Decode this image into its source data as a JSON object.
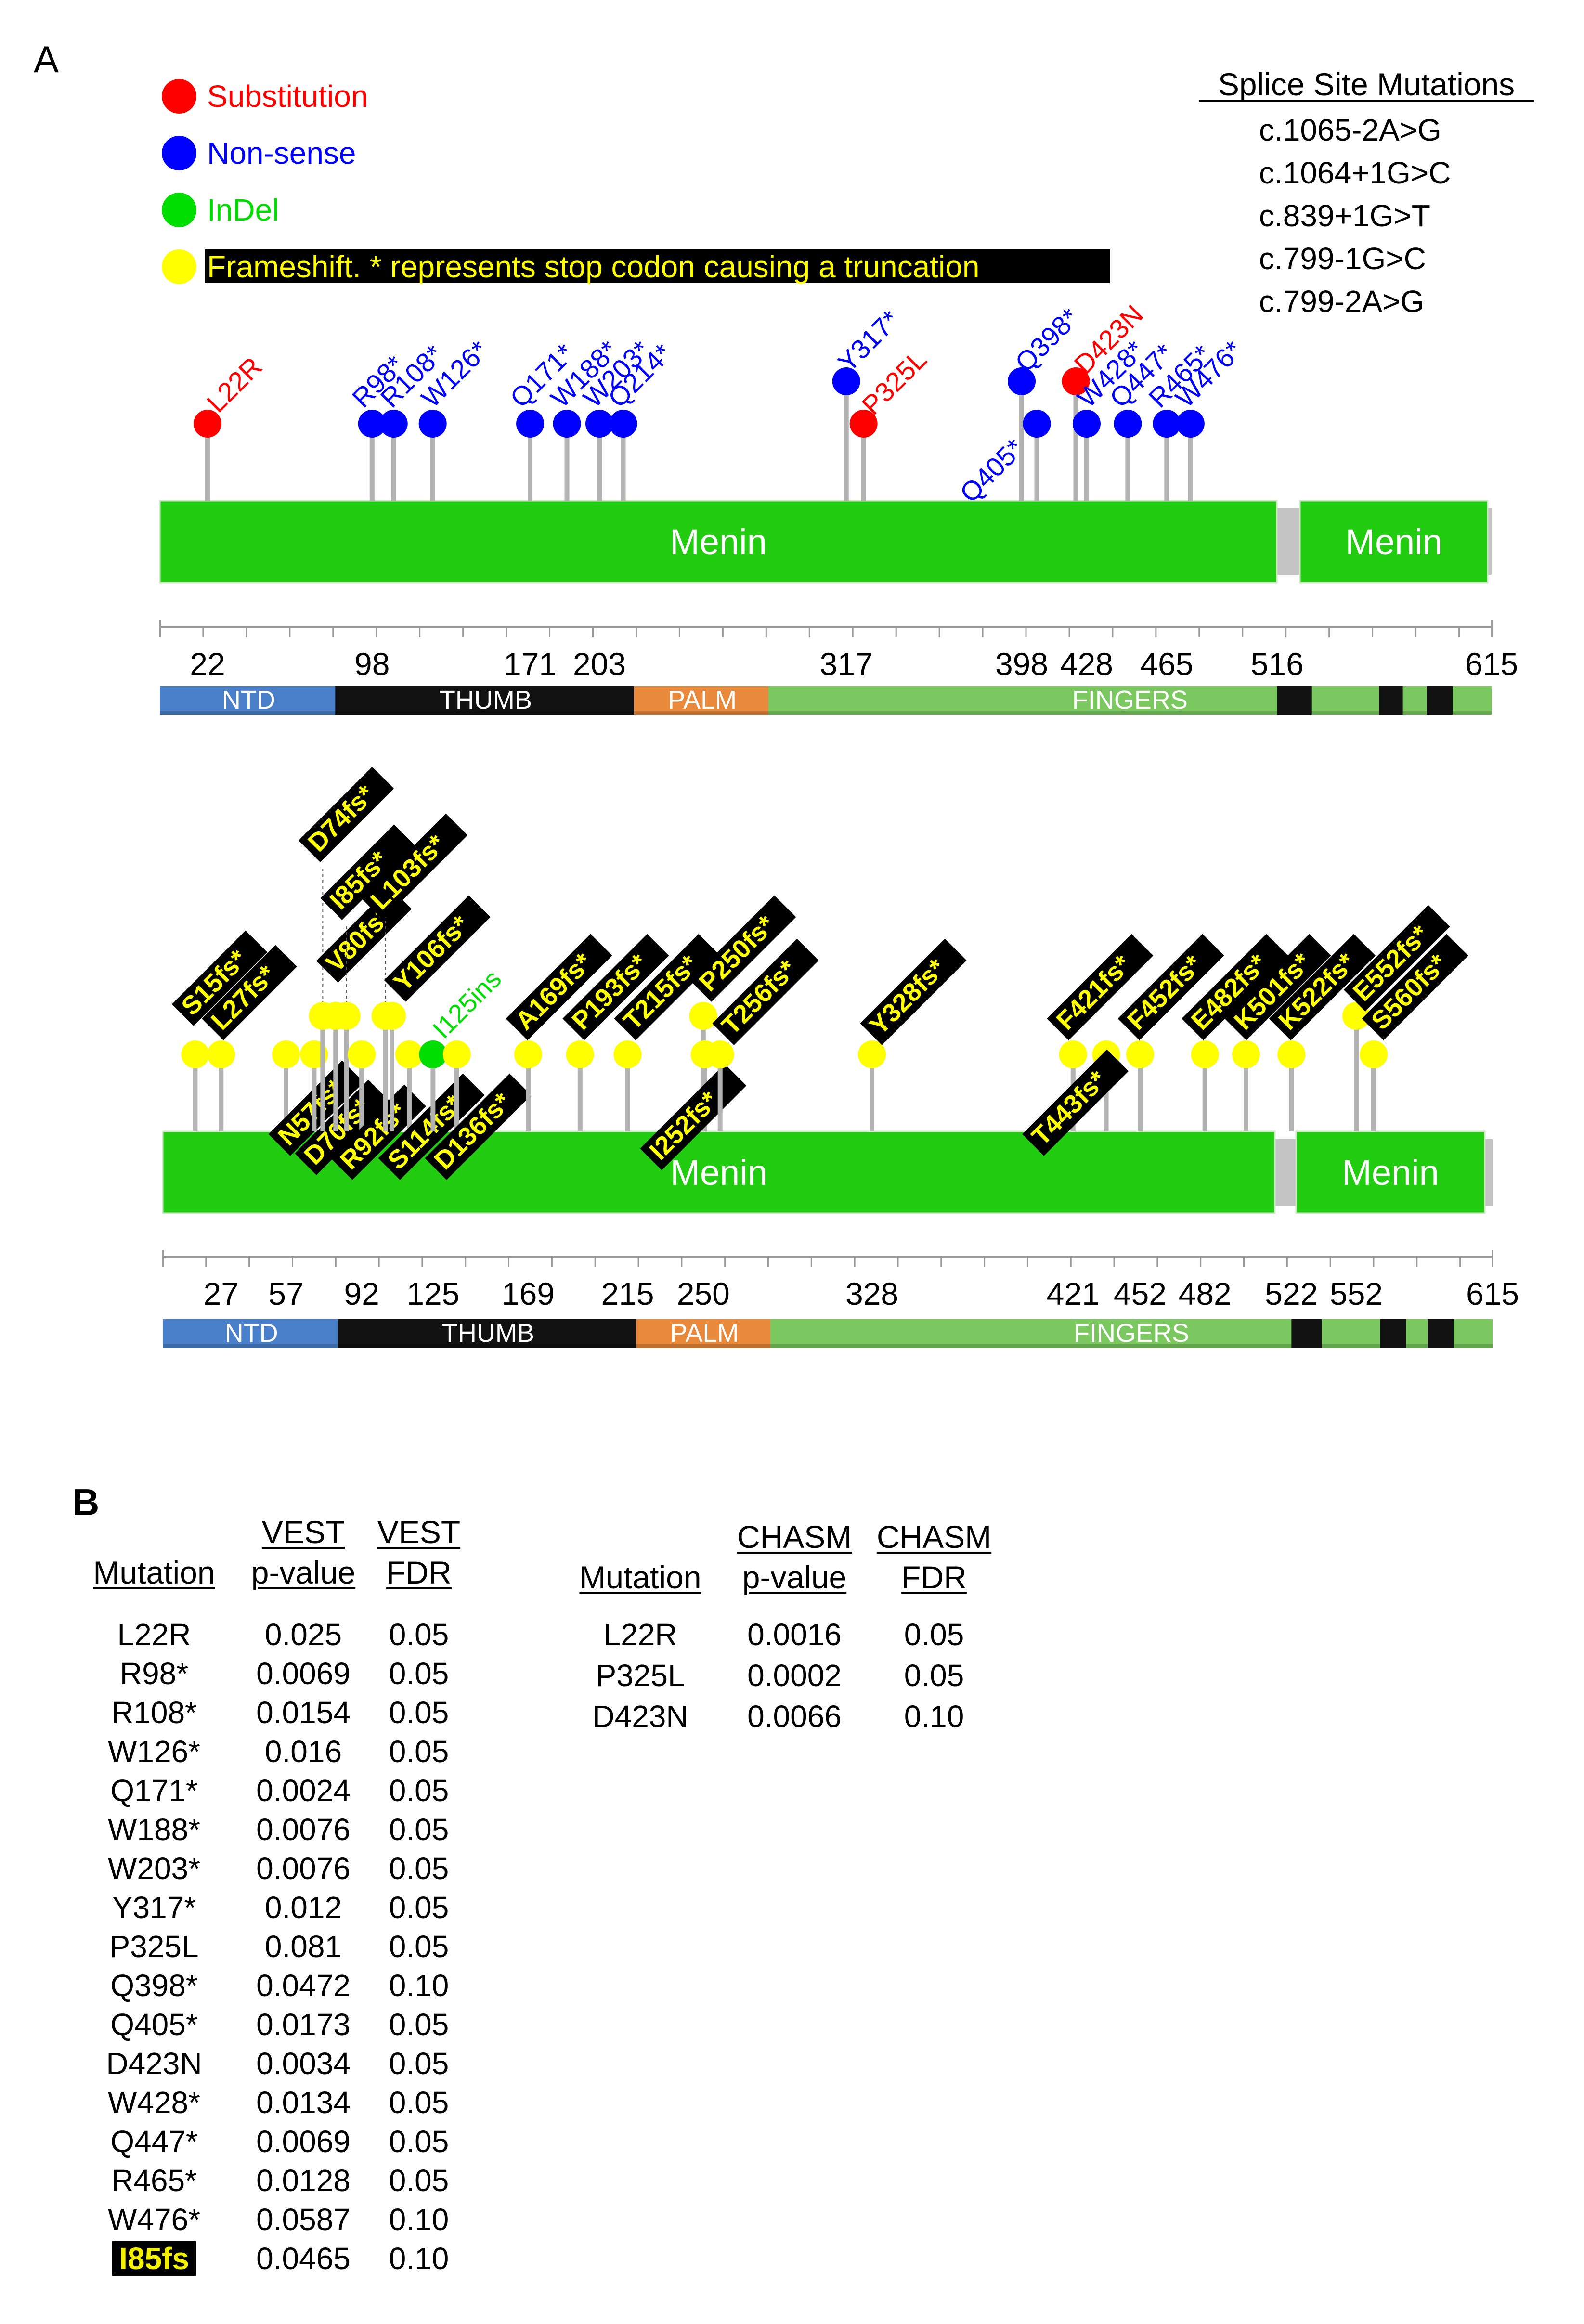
{
  "panel_a_label": "A",
  "panel_b_label": "B",
  "legend": [
    {
      "color": "#ff0000",
      "text_color": "#ff0000",
      "label": "Substitution",
      "highlight": false
    },
    {
      "color": "#0000ff",
      "text_color": "#0000ff",
      "label": "Non-sense",
      "highlight": false
    },
    {
      "color": "#00dd00",
      "text_color": "#00dd00",
      "label": "InDel",
      "highlight": false
    },
    {
      "color": "#ffff00",
      "text_color": "#ffff00",
      "label": "Frameshift. * represents stop codon causing a truncation",
      "highlight": true
    }
  ],
  "splice": {
    "title": "Splice Site Mutations",
    "items": [
      "c.1065-2A>G",
      "c.1064+1G>C",
      "c.839+1G>T",
      "c.799-1G>C",
      "c.799-2A>G"
    ]
  },
  "colors": {
    "substitution": "#ff0000",
    "nonsense": "#0000ff",
    "indel": "#00dd00",
    "frameshift": "#ffff00",
    "menin_bar": "#22cc11",
    "stem": "#b3b3b3",
    "ntd": "#4a7fc9",
    "thumb": "#111111",
    "palm": "#e8893c",
    "fingers": "#7cc860"
  },
  "protein_label": "Menin",
  "protein_length": 615,
  "domains": [
    {
      "name": "NTD",
      "start": 1,
      "end": 82
    },
    {
      "name": "THUMB",
      "start": 82,
      "end": 220
    },
    {
      "name": "PALM",
      "start": 220,
      "end": 282
    },
    {
      "name": "FINGERS",
      "start": 282,
      "end": 615
    }
  ],
  "track1": {
    "ticks": [
      "22",
      "98",
      "171",
      "203",
      "317",
      "398",
      "428",
      "465",
      "516",
      "615"
    ],
    "mutations": [
      {
        "label": "L22R",
        "pos": 22,
        "type": "substitution"
      },
      {
        "label": "R98*",
        "pos": 98,
        "type": "nonsense"
      },
      {
        "label": "R108*",
        "pos": 108,
        "type": "nonsense"
      },
      {
        "label": "W126*",
        "pos": 126,
        "type": "nonsense"
      },
      {
        "label": "Q171*",
        "pos": 171,
        "type": "nonsense"
      },
      {
        "label": "W188*",
        "pos": 188,
        "type": "nonsense"
      },
      {
        "label": "W203*",
        "pos": 203,
        "type": "nonsense"
      },
      {
        "label": "Q214*",
        "pos": 214,
        "type": "nonsense"
      },
      {
        "label": "Y317*",
        "pos": 317,
        "type": "nonsense"
      },
      {
        "label": "P325L",
        "pos": 325,
        "type": "substitution"
      },
      {
        "label": "Q398*",
        "pos": 398,
        "type": "nonsense"
      },
      {
        "label": "Q405*",
        "pos": 405,
        "type": "nonsense"
      },
      {
        "label": "D423N",
        "pos": 423,
        "type": "substitution"
      },
      {
        "label": "W428*",
        "pos": 428,
        "type": "nonsense"
      },
      {
        "label": "Q447*",
        "pos": 447,
        "type": "nonsense"
      },
      {
        "label": "R465*",
        "pos": 465,
        "type": "nonsense"
      },
      {
        "label": "W476*",
        "pos": 476,
        "type": "nonsense"
      }
    ]
  },
  "track2": {
    "ticks": [
      "27",
      "57",
      "92",
      "125",
      "169",
      "215",
      "250",
      "328",
      "421",
      "452",
      "482",
      "522",
      "552",
      "615"
    ],
    "mutations": [
      {
        "label": "S15fs*",
        "pos": 15,
        "type": "frameshift"
      },
      {
        "label": "L27fs*",
        "pos": 27,
        "type": "frameshift"
      },
      {
        "label": "N57fs*",
        "pos": 57,
        "type": "frameshift"
      },
      {
        "label": "D70fs*",
        "pos": 70,
        "type": "frameshift"
      },
      {
        "label": "D74fs*",
        "pos": 74,
        "type": "frameshift"
      },
      {
        "label": "V80fs*",
        "pos": 80,
        "type": "frameshift"
      },
      {
        "label": "I85fs*",
        "pos": 85,
        "type": "frameshift"
      },
      {
        "label": "R92fs*",
        "pos": 92,
        "type": "frameshift"
      },
      {
        "label": "L103fs*",
        "pos": 103,
        "type": "frameshift"
      },
      {
        "label": "Y106fs*",
        "pos": 106,
        "type": "frameshift"
      },
      {
        "label": "S114fs*",
        "pos": 114,
        "type": "frameshift"
      },
      {
        "label": "I125ins",
        "pos": 125,
        "type": "indel"
      },
      {
        "label": "D136fs*",
        "pos": 136,
        "type": "frameshift"
      },
      {
        "label": "A169fs*",
        "pos": 169,
        "type": "frameshift"
      },
      {
        "label": "P193fs*",
        "pos": 193,
        "type": "frameshift"
      },
      {
        "label": "T215fs*",
        "pos": 215,
        "type": "frameshift"
      },
      {
        "label": "P250fs*",
        "pos": 250,
        "type": "frameshift"
      },
      {
        "label": "I252fs*",
        "pos": 252,
        "type": "frameshift"
      },
      {
        "label": "T256fs*",
        "pos": 256,
        "type": "frameshift"
      },
      {
        "label": "Y328fs*",
        "pos": 328,
        "type": "frameshift"
      },
      {
        "label": "F421fs*",
        "pos": 421,
        "type": "frameshift"
      },
      {
        "label": "T443fs*",
        "pos": 443,
        "type": "frameshift"
      },
      {
        "label": "F452fs*",
        "pos": 452,
        "type": "frameshift"
      },
      {
        "label": "E482fs*",
        "pos": 482,
        "type": "frameshift"
      },
      {
        "label": "K501fs*",
        "pos": 501,
        "type": "frameshift"
      },
      {
        "label": "K522fs*",
        "pos": 522,
        "type": "frameshift"
      },
      {
        "label": "E552fs*",
        "pos": 552,
        "type": "frameshift"
      },
      {
        "label": "S560fs*",
        "pos": 560,
        "type": "frameshift"
      }
    ]
  },
  "vest_table": {
    "headers": [
      [
        "",
        "Mutation"
      ],
      [
        "VEST",
        "p-value"
      ],
      [
        "VEST",
        "FDR"
      ]
    ],
    "rows": [
      [
        "L22R",
        "0.025",
        "0.05"
      ],
      [
        "R98*",
        "0.0069",
        "0.05"
      ],
      [
        "R108*",
        "0.0154",
        "0.05"
      ],
      [
        "W126*",
        "0.016",
        "0.05"
      ],
      [
        "Q171*",
        "0.0024",
        "0.05"
      ],
      [
        "W188*",
        "0.0076",
        "0.05"
      ],
      [
        "W203*",
        "0.0076",
        "0.05"
      ],
      [
        "Y317*",
        "0.012",
        "0.05"
      ],
      [
        "P325L",
        "0.081",
        "0.05"
      ],
      [
        "Q398*",
        "0.0472",
        "0.10"
      ],
      [
        "Q405*",
        "0.0173",
        "0.05"
      ],
      [
        "D423N",
        "0.0034",
        "0.05"
      ],
      [
        "W428*",
        "0.0134",
        "0.05"
      ],
      [
        "Q447*",
        "0.0069",
        "0.05"
      ],
      [
        "R465*",
        "0.0128",
        "0.05"
      ],
      [
        "W476*",
        "0.0587",
        "0.10"
      ],
      [
        "I85fs",
        "0.0465",
        "0.10"
      ]
    ],
    "highlight_row": 16
  },
  "chasm_table": {
    "headers": [
      [
        "",
        "Mutation"
      ],
      [
        "CHASM",
        "p-value"
      ],
      [
        "CHASM",
        "FDR"
      ]
    ],
    "rows": [
      [
        "L22R",
        "0.0016",
        "0.05"
      ],
      [
        "P325L",
        "0.0002",
        "0.05"
      ],
      [
        "D423N",
        "0.0066",
        "0.10"
      ]
    ]
  }
}
